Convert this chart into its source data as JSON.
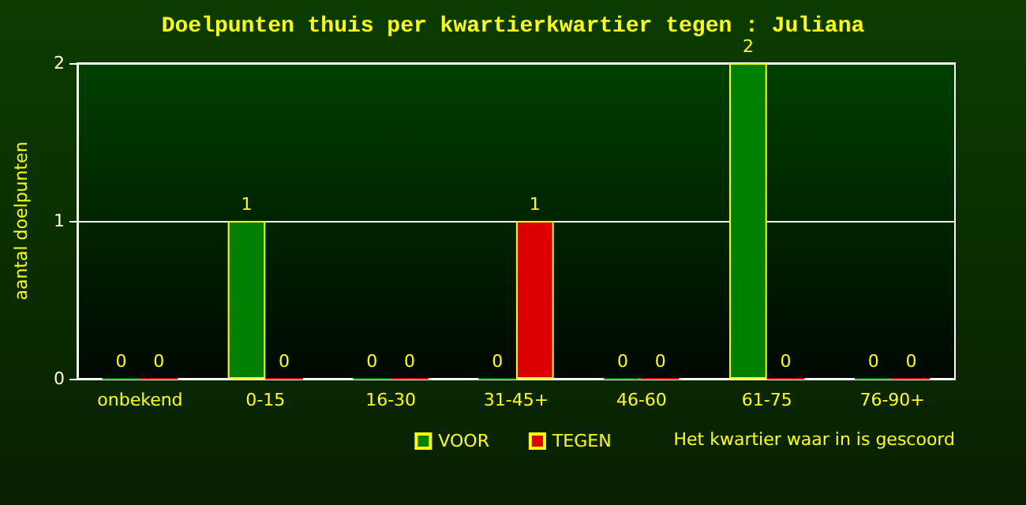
{
  "chart_data": {
    "type": "bar",
    "title": "Doelpunten thuis per kwartierkwartier tegen : Juliana",
    "xlabel": "Het kwartier waar in is gescoord",
    "ylabel": "aantal doelpunten",
    "categories": [
      "onbekend",
      "0-15",
      "16-30",
      "31-45+",
      "46-60",
      "61-75",
      "76-90+"
    ],
    "series": [
      {
        "name": "VOOR",
        "color": "#008000",
        "values": [
          0,
          1,
          0,
          0,
          0,
          2,
          0
        ]
      },
      {
        "name": "TEGEN",
        "color": "#dd0000",
        "values": [
          0,
          0,
          0,
          1,
          0,
          0,
          0
        ]
      }
    ],
    "ylim": [
      0,
      2
    ],
    "yticks": [
      0,
      1,
      2
    ],
    "grid": "y",
    "legend": "bottom",
    "data_labels": true
  }
}
